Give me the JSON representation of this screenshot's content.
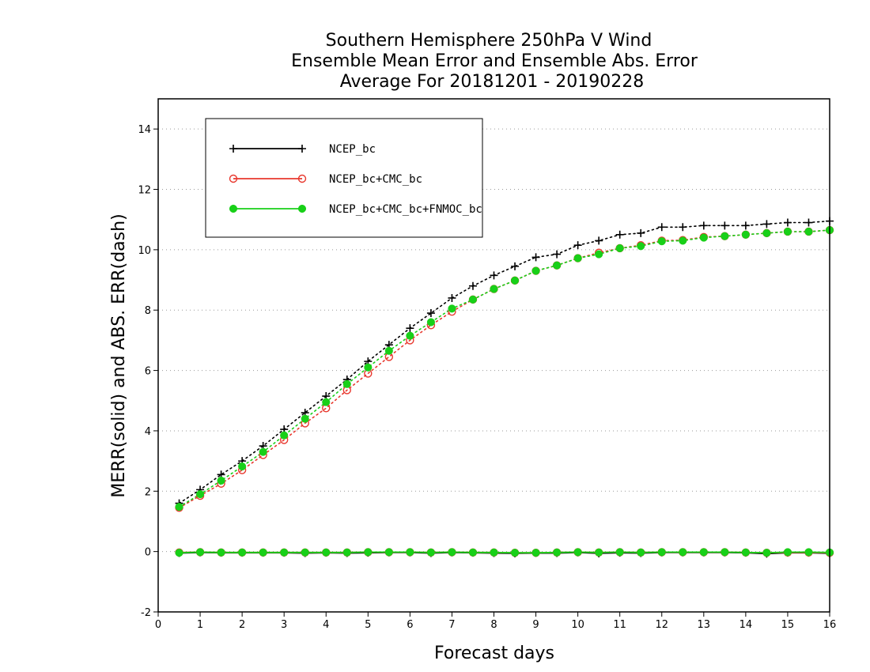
{
  "chart_data": {
    "type": "line",
    "title_lines": [
      "Southern Hemisphere 250hPa V Wind",
      "Ensemble Mean Error and Ensemble Abs. Error",
      "Average For 20181201 - 20190228"
    ],
    "xlabel": "Forecast days",
    "ylabel": "MERR(solid) and ABS. ERR(dash)",
    "xlim": [
      0,
      16
    ],
    "ylim": [
      -2,
      15
    ],
    "xticks": [
      0,
      1,
      2,
      3,
      4,
      5,
      6,
      7,
      8,
      9,
      10,
      11,
      12,
      13,
      14,
      15,
      16
    ],
    "yticks": [
      -2,
      0,
      2,
      4,
      6,
      8,
      10,
      12,
      14
    ],
    "grid": "horizontal dotted",
    "legend_position": "top-left",
    "x": [
      0.5,
      1,
      1.5,
      2,
      2.5,
      3,
      3.5,
      4,
      4.5,
      5,
      5.5,
      6,
      6.5,
      7,
      7.5,
      8,
      8.5,
      9,
      9.5,
      10,
      10.5,
      11,
      11.5,
      12,
      12.5,
      13,
      13.5,
      14,
      14.5,
      15,
      15.5,
      16
    ],
    "series": [
      {
        "name": "NCEP_bc",
        "color": "#000000",
        "marker": "plus",
        "abs_error": [
          1.6,
          2.05,
          2.55,
          3.0,
          3.5,
          4.05,
          4.6,
          5.15,
          5.7,
          6.3,
          6.85,
          7.4,
          7.9,
          8.4,
          8.8,
          9.15,
          9.45,
          9.75,
          9.85,
          10.15,
          10.3,
          10.5,
          10.55,
          10.75,
          10.75,
          10.8,
          10.8,
          10.8,
          10.85,
          10.9,
          10.9,
          10.95
        ],
        "mean_error": [
          -0.05,
          -0.03,
          -0.04,
          -0.04,
          -0.04,
          -0.04,
          -0.05,
          -0.04,
          -0.05,
          -0.04,
          -0.03,
          -0.03,
          -0.05,
          -0.03,
          -0.04,
          -0.05,
          -0.06,
          -0.05,
          -0.05,
          -0.03,
          -0.06,
          -0.04,
          -0.05,
          -0.03,
          -0.03,
          -0.03,
          -0.03,
          -0.04,
          -0.07,
          -0.04,
          -0.04,
          -0.06
        ]
      },
      {
        "name": "NCEP_bc+CMC_bc",
        "color": "#e8382e",
        "marker": "circle-open",
        "abs_error": [
          1.45,
          1.85,
          2.25,
          2.7,
          3.2,
          3.7,
          4.25,
          4.75,
          5.35,
          5.9,
          6.45,
          7.0,
          7.5,
          7.95,
          8.35,
          8.7,
          8.98,
          9.3,
          9.48,
          9.72,
          9.9,
          10.05,
          10.15,
          10.3,
          10.32,
          10.42,
          10.45,
          10.5,
          10.55,
          10.6,
          10.6,
          10.65
        ],
        "mean_error": [
          -0.03,
          -0.02,
          -0.03,
          -0.03,
          -0.03,
          -0.03,
          -0.03,
          -0.03,
          -0.03,
          -0.02,
          -0.02,
          -0.02,
          -0.03,
          -0.02,
          -0.03,
          -0.03,
          -0.04,
          -0.04,
          -0.03,
          -0.02,
          -0.03,
          -0.02,
          -0.03,
          -0.02,
          -0.02,
          -0.02,
          -0.02,
          -0.03,
          -0.04,
          -0.03,
          -0.03,
          -0.04
        ]
      },
      {
        "name": "NCEP_bc+CMC_bc+FNMOC_bc",
        "color": "#18d018",
        "marker": "circle-filled",
        "abs_error": [
          1.48,
          1.9,
          2.35,
          2.82,
          3.3,
          3.85,
          4.4,
          4.95,
          5.55,
          6.1,
          6.65,
          7.15,
          7.6,
          8.05,
          8.35,
          8.7,
          8.98,
          9.3,
          9.48,
          9.72,
          9.85,
          10.05,
          10.12,
          10.28,
          10.3,
          10.4,
          10.45,
          10.5,
          10.55,
          10.6,
          10.6,
          10.65
        ],
        "mean_error": [
          -0.04,
          -0.02,
          -0.03,
          -0.03,
          -0.03,
          -0.03,
          -0.03,
          -0.03,
          -0.03,
          -0.02,
          -0.02,
          -0.02,
          -0.03,
          -0.02,
          -0.03,
          -0.03,
          -0.04,
          -0.04,
          -0.03,
          -0.02,
          -0.03,
          -0.02,
          -0.03,
          -0.02,
          -0.02,
          -0.02,
          -0.02,
          -0.03,
          -0.04,
          -0.02,
          -0.02,
          -0.03
        ]
      }
    ]
  }
}
